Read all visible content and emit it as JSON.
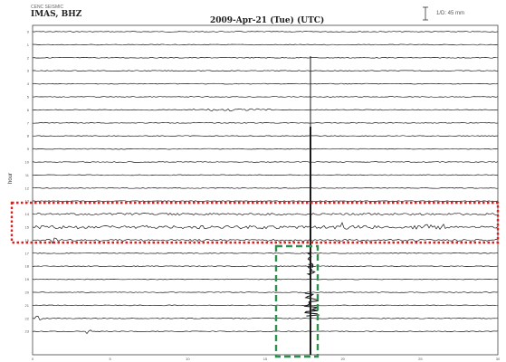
{
  "header": {
    "network_line": "CENC SEISMIC",
    "station": "IMAS, BHZ",
    "title": "2009-Apr-21 (Tue) (UTC)",
    "scale_label": "1/D: 45 mm"
  },
  "axis": {
    "y_label": "hour",
    "y_ticks": [
      "0",
      "1",
      "2",
      "3",
      "4",
      "5",
      "6",
      "7",
      "8",
      "9",
      "10",
      "11",
      "12",
      "13",
      "14",
      "15",
      "16",
      "17",
      "18",
      "19",
      "20",
      "21",
      "22",
      "23"
    ],
    "x_ticks": [
      "0",
      "5",
      "10",
      "15",
      "20",
      "25",
      "30"
    ]
  },
  "annotations": {
    "red_box_color": "#e31b1b",
    "green_box_color": "#2f8f4e"
  },
  "trace_color": "#1a1a1a"
}
